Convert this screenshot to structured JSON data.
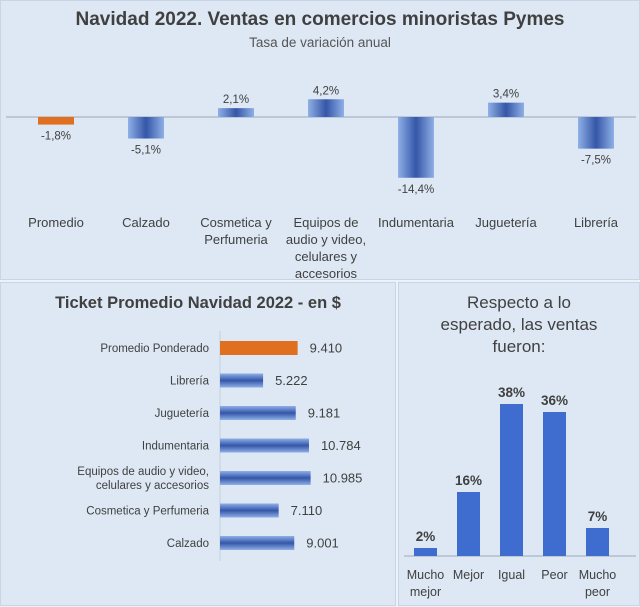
{
  "colors": {
    "highlight": "#e07020",
    "bar_dark": "#3556a8",
    "bar_light": "#8fb0e6",
    "bar_plain": "#3f6ccf"
  },
  "chart_data": [
    {
      "type": "bar",
      "title": "Navidad 2022. Ventas en comercios minoristas Pymes",
      "subtitle": "Tasa de variación anual",
      "categories": [
        "Promedio",
        "Calzado",
        "Cosmetica y Perfumeria",
        "Equipos de audio y video, celulares y accesorios",
        "Indumentaria",
        "Juguetería",
        "Librería"
      ],
      "category_lines": [
        [
          "Promedio"
        ],
        [
          "Calzado"
        ],
        [
          "Cosmetica y",
          "Perfumeria"
        ],
        [
          "Equipos de",
          "audio y video,",
          "celulares y",
          "accesorios"
        ],
        [
          "Indumentaria"
        ],
        [
          "Juguetería"
        ],
        [
          "Librería"
        ]
      ],
      "values": [
        -1.8,
        -5.1,
        2.1,
        4.2,
        -14.4,
        3.4,
        -7.5
      ],
      "value_labels": [
        "-1,8%",
        "-5,1%",
        "2,1%",
        "4,2%",
        "-14,4%",
        "3,4%",
        "-7,5%"
      ],
      "highlight_index": 0
    },
    {
      "type": "bar",
      "orientation": "horizontal",
      "title": "Ticket Promedio Navidad 2022 - en $",
      "categories": [
        "Promedio Ponderado",
        "Librería",
        "Juguetería",
        "Indumentaria",
        "Equipos de audio y video, celulares y accesorios",
        "Cosmetica y Perfumeria",
        "Calzado"
      ],
      "category_lines": [
        [
          "Promedio Ponderado"
        ],
        [
          "Librería"
        ],
        [
          "Juguetería"
        ],
        [
          "Indumentaria"
        ],
        [
          "Equipos de audio y video,",
          "celulares y accesorios"
        ],
        [
          "Cosmetica y Perfumeria"
        ],
        [
          "Calzado"
        ]
      ],
      "values": [
        9410,
        5222,
        9181,
        10784,
        10985,
        7110,
        9001
      ],
      "value_labels": [
        "9.410",
        "5.222",
        "9.181",
        "10.784",
        "10.985",
        "7.110",
        "9.001"
      ],
      "highlight_index": 0
    },
    {
      "type": "bar",
      "title": "Respecto a lo esperado, las ventas fueron:",
      "title_lines": [
        "Respecto a lo",
        "esperado, las ventas",
        "fueron:"
      ],
      "categories": [
        "Mucho mejor",
        "Mejor",
        "Igual",
        "Peor",
        "Mucho peor"
      ],
      "category_lines": [
        [
          "Mucho",
          "mejor"
        ],
        [
          "Mejor"
        ],
        [
          "Igual"
        ],
        [
          "Peor"
        ],
        [
          "Mucho",
          "peor"
        ]
      ],
      "values": [
        2,
        16,
        38,
        36,
        7
      ],
      "value_labels": [
        "2%",
        "16%",
        "38%",
        "36%",
        "7%"
      ]
    }
  ]
}
